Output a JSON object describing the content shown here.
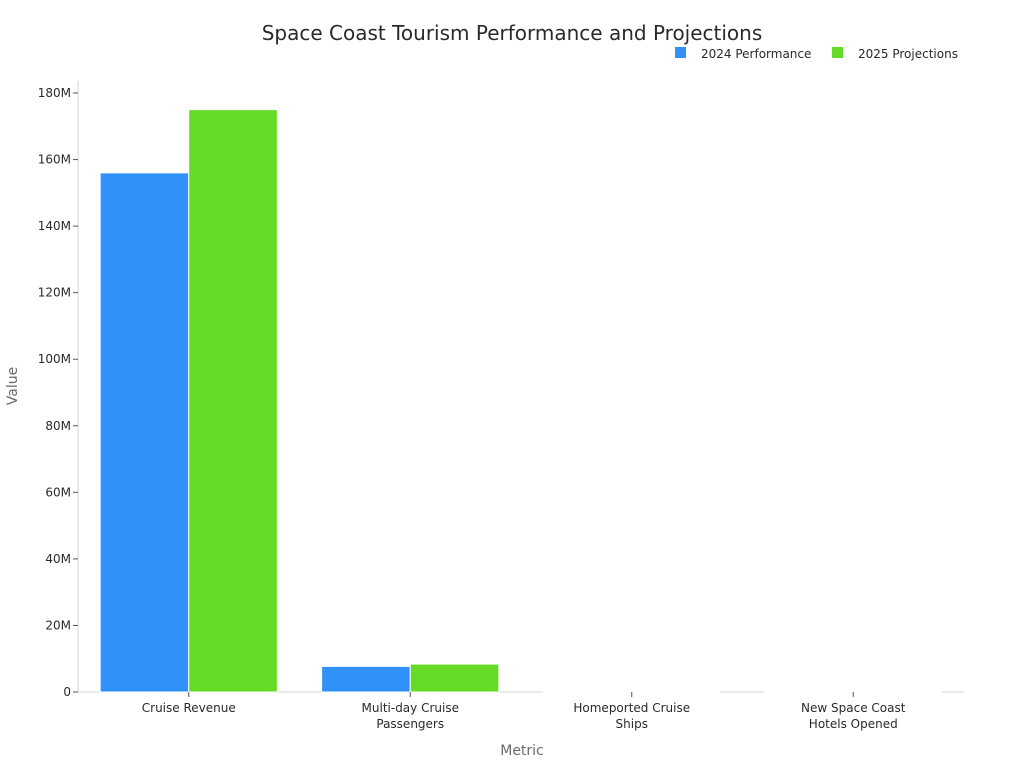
{
  "chart_data": {
    "type": "bar",
    "title": "Space Coast Tourism Performance and Projections",
    "xlabel": "Metric",
    "ylabel": "Value",
    "categories": [
      "Cruise Revenue",
      "Multi-day Cruise Passengers",
      "Homeported Cruise Ships",
      "New Space Coast Hotels Opened"
    ],
    "series": [
      {
        "name": "2024 Performance",
        "color": "#3091f8",
        "values": [
          156000000,
          7700000,
          8,
          7
        ]
      },
      {
        "name": "2025 Projections",
        "color": "#66db27",
        "values": [
          175000000,
          8400000,
          9,
          7
        ]
      }
    ],
    "ylim": [
      0,
      180000000
    ],
    "yticks": [
      0,
      20000000,
      40000000,
      60000000,
      80000000,
      100000000,
      120000000,
      140000000,
      160000000,
      180000000
    ],
    "ytick_labels": [
      "0",
      "20M",
      "40M",
      "60M",
      "80M",
      "100M",
      "120M",
      "140M",
      "160M",
      "180M"
    ],
    "xtick_lines": [
      [
        "Cruise Revenue"
      ],
      [
        "Multi-day Cruise",
        "Passengers"
      ],
      [
        "Homeported Cruise",
        "Ships"
      ],
      [
        "New Space Coast",
        "Hotels Opened"
      ]
    ],
    "legend_position": "top-right",
    "grid": false
  }
}
